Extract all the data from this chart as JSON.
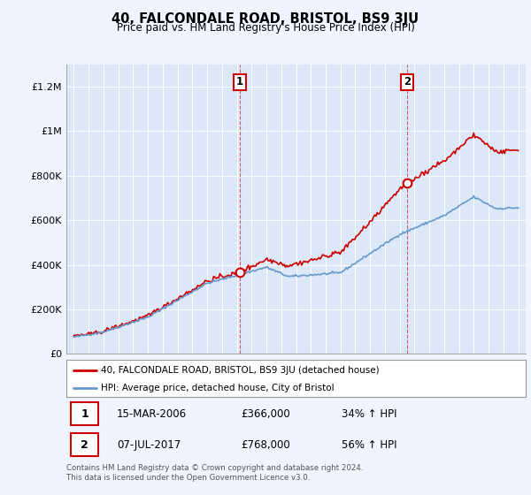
{
  "title": "40, FALCONDALE ROAD, BRISTOL, BS9 3JU",
  "subtitle": "Price paid vs. HM Land Registry's House Price Index (HPI)",
  "background_color": "#f0f4ff",
  "plot_bg_color": "#dce8f8",
  "legend_label_red": "40, FALCONDALE ROAD, BRISTOL, BS9 3JU (detached house)",
  "legend_label_blue": "HPI: Average price, detached house, City of Bristol",
  "annotation1_label": "1",
  "annotation1_date": "15-MAR-2006",
  "annotation1_price": "£366,000",
  "annotation1_hpi": "34% ↑ HPI",
  "annotation1_year": 2006.2,
  "annotation1_value": 366000,
  "annotation2_label": "2",
  "annotation2_date": "07-JUL-2017",
  "annotation2_price": "£768,000",
  "annotation2_hpi": "56% ↑ HPI",
  "annotation2_year": 2017.5,
  "annotation2_value": 768000,
  "footer_line1": "Contains HM Land Registry data © Crown copyright and database right 2024.",
  "footer_line2": "This data is licensed under the Open Government Licence v3.0.",
  "ylim": [
    0,
    1300000
  ],
  "yticks": [
    0,
    200000,
    400000,
    600000,
    800000,
    1000000,
    1200000
  ],
  "ytick_labels": [
    "£0",
    "£200K",
    "£400K",
    "£600K",
    "£800K",
    "£1M",
    "£1.2M"
  ],
  "red_color": "#cc0000",
  "blue_color": "#6699cc",
  "xmin": 1994.5,
  "xmax": 2025.5
}
